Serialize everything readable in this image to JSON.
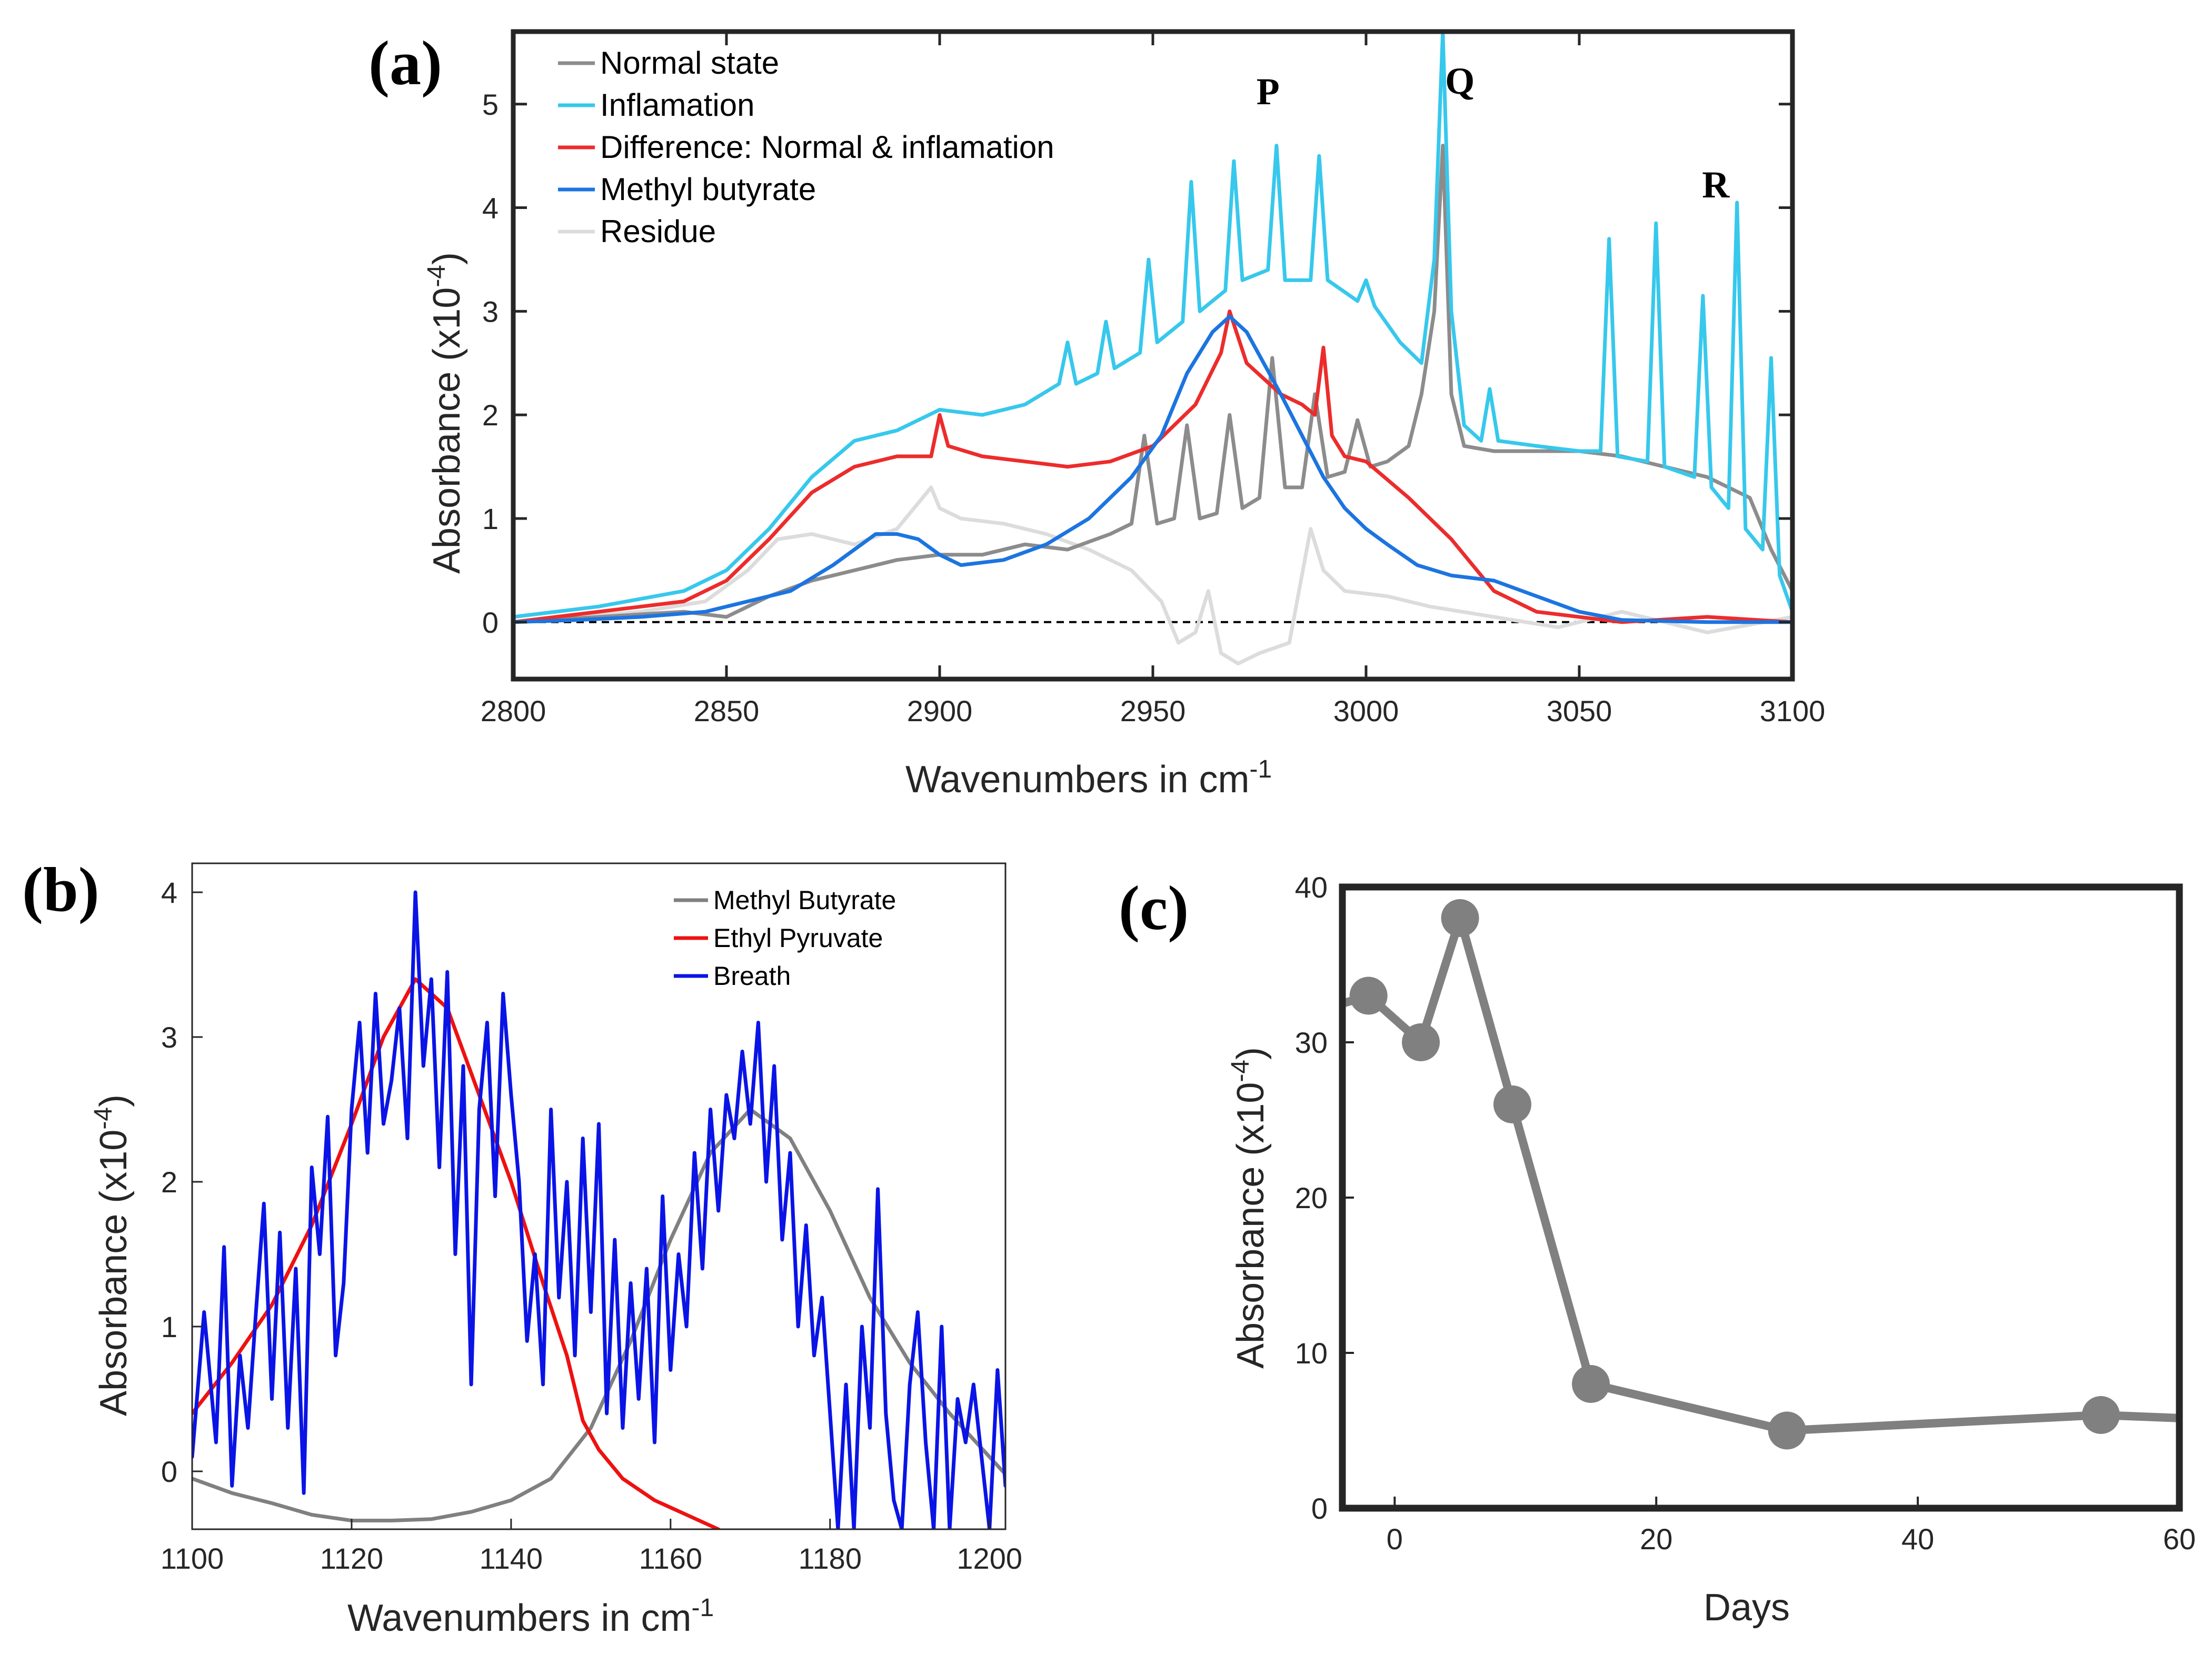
{
  "chart_data": [
    {
      "type": "line",
      "panel": "(a)",
      "xlabel": "Wavenumbers in cm",
      "xlabel_sup": "-1",
      "ylabel": "Absorbance (x10",
      "ylabel_sup": "-4",
      "ylabel_close": ")",
      "xlim": [
        2800,
        3100
      ],
      "ylim": [
        -0.55,
        5.7
      ],
      "xticks": [
        "2800",
        "2850",
        "2900",
        "2950",
        "3000",
        "3050",
        "3100"
      ],
      "yticks": [
        "0",
        "1",
        "2",
        "3",
        "4",
        "5"
      ],
      "zero_line": "dashed",
      "annotations": [
        {
          "text": "P",
          "x": 2977,
          "y": 5.0
        },
        {
          "text": "Q",
          "x": 3022,
          "y": 5.1
        },
        {
          "text": "R",
          "x": 3082,
          "y": 4.1
        }
      ],
      "legend": [
        {
          "name": "Normal state",
          "color": "#8c8c8c"
        },
        {
          "name": "Inflamation",
          "color": "#37c8ec"
        },
        {
          "name": "Difference: Normal & inflamation",
          "color": "#ec2c2c"
        },
        {
          "name": "Methyl butyrate",
          "color": "#1c74e0"
        },
        {
          "name": "Residue",
          "color": "#dcdcdc"
        }
      ],
      "series": [
        {
          "name": "Residue",
          "color": "#dcdcdc",
          "x": [
            2800,
            2815,
            2830,
            2845,
            2855,
            2862,
            2870,
            2880,
            2890,
            2898,
            2900,
            2905,
            2915,
            2925,
            2935,
            2945,
            2952,
            2956,
            2960,
            2963,
            2966,
            2970,
            2975,
            2982,
            2987,
            2990,
            2995,
            3005,
            3015,
            3030,
            3045,
            3060,
            3080,
            3100
          ],
          "y": [
            0,
            0.05,
            0.1,
            0.2,
            0.5,
            0.8,
            0.85,
            0.75,
            0.9,
            1.3,
            1.1,
            1.0,
            0.95,
            0.85,
            0.7,
            0.5,
            0.2,
            -0.2,
            -0.1,
            0.3,
            -0.3,
            -0.4,
            -0.3,
            -0.2,
            0.9,
            0.5,
            0.3,
            0.25,
            0.15,
            0.05,
            -0.05,
            0.1,
            -0.1,
            0.05
          ]
        },
        {
          "name": "Normal state",
          "color": "#8c8c8c",
          "x": [
            2800,
            2820,
            2840,
            2850,
            2860,
            2870,
            2880,
            2890,
            2900,
            2910,
            2920,
            2930,
            2940,
            2945,
            2948,
            2951,
            2955,
            2958,
            2961,
            2965,
            2968,
            2971,
            2975,
            2978,
            2981,
            2985,
            2988,
            2991,
            2995,
            2998,
            3001,
            3005,
            3010,
            3013,
            3016,
            3018,
            3020,
            3023,
            3030,
            3040,
            3050,
            3060,
            3070,
            3080,
            3090,
            3095,
            3100
          ],
          "y": [
            0,
            0.05,
            0.1,
            0.05,
            0.25,
            0.4,
            0.5,
            0.6,
            0.65,
            0.65,
            0.75,
            0.7,
            0.85,
            0.95,
            1.8,
            0.95,
            1.0,
            1.9,
            1.0,
            1.05,
            2.0,
            1.1,
            1.2,
            2.55,
            1.3,
            1.3,
            2.2,
            1.4,
            1.45,
            1.95,
            1.5,
            1.55,
            1.7,
            2.2,
            3.0,
            4.6,
            2.2,
            1.7,
            1.65,
            1.65,
            1.65,
            1.6,
            1.5,
            1.4,
            1.2,
            0.7,
            0.3
          ]
        },
        {
          "name": "Inflamation",
          "color": "#37c8ec",
          "x": [
            2800,
            2820,
            2840,
            2850,
            2860,
            2870,
            2880,
            2890,
            2900,
            2910,
            2920,
            2928,
            2930,
            2932,
            2937,
            2939,
            2941,
            2947,
            2949,
            2951,
            2957,
            2959,
            2961,
            2967,
            2969,
            2971,
            2977,
            2979,
            2981,
            2987,
            2989,
            2991,
            2998,
            3000,
            3002,
            3008,
            3013,
            3016,
            3018,
            3020,
            3023,
            3027,
            3029,
            3031,
            3040,
            3050,
            3055,
            3057,
            3059,
            3066,
            3068,
            3070,
            3077,
            3079,
            3081,
            3085,
            3087,
            3089,
            3093,
            3095,
            3097,
            3100
          ],
          "y": [
            0.05,
            0.15,
            0.3,
            0.5,
            0.9,
            1.4,
            1.75,
            1.85,
            2.05,
            2.0,
            2.1,
            2.3,
            2.7,
            2.3,
            2.4,
            2.9,
            2.45,
            2.6,
            3.5,
            2.7,
            2.9,
            4.25,
            3.0,
            3.2,
            4.45,
            3.3,
            3.4,
            4.6,
            3.3,
            3.3,
            4.5,
            3.3,
            3.1,
            3.3,
            3.05,
            2.7,
            2.5,
            3.5,
            5.7,
            3.0,
            1.9,
            1.75,
            2.25,
            1.75,
            1.7,
            1.65,
            1.65,
            3.7,
            1.6,
            1.55,
            3.85,
            1.5,
            1.4,
            3.15,
            1.3,
            1.1,
            4.05,
            0.9,
            0.7,
            2.55,
            0.45,
            0.1
          ]
        },
        {
          "name": "Difference: Normal & inflamation",
          "color": "#ec2c2c",
          "x": [
            2800,
            2820,
            2840,
            2850,
            2860,
            2870,
            2880,
            2890,
            2898,
            2900,
            2902,
            2910,
            2920,
            2930,
            2940,
            2950,
            2960,
            2966,
            2968,
            2972,
            2976,
            2980,
            2985,
            2988,
            2990,
            2992,
            2995,
            3000,
            3010,
            3020,
            3030,
            3040,
            3060,
            3080,
            3100
          ],
          "y": [
            0,
            0.1,
            0.2,
            0.4,
            0.8,
            1.25,
            1.5,
            1.6,
            1.6,
            2.0,
            1.7,
            1.6,
            1.55,
            1.5,
            1.55,
            1.7,
            2.1,
            2.6,
            3.0,
            2.5,
            2.35,
            2.2,
            2.1,
            2.0,
            2.65,
            1.8,
            1.6,
            1.55,
            1.2,
            0.8,
            0.3,
            0.1,
            0.0,
            0.05,
            0.0
          ]
        },
        {
          "name": "Methyl butyrate",
          "color": "#1c74e0",
          "x": [
            2800,
            2815,
            2830,
            2845,
            2855,
            2865,
            2875,
            2885,
            2890,
            2895,
            2900,
            2905,
            2915,
            2925,
            2935,
            2945,
            2952,
            2958,
            2964,
            2968,
            2972,
            2976,
            2980,
            2985,
            2990,
            2995,
            3000,
            3005,
            3012,
            3020,
            3030,
            3040,
            3050,
            3060,
            3080,
            3100
          ],
          "y": [
            0,
            0.02,
            0.05,
            0.1,
            0.2,
            0.3,
            0.55,
            0.85,
            0.85,
            0.8,
            0.65,
            0.55,
            0.6,
            0.75,
            1.0,
            1.4,
            1.8,
            2.4,
            2.8,
            2.95,
            2.8,
            2.5,
            2.2,
            1.8,
            1.4,
            1.1,
            0.9,
            0.75,
            0.55,
            0.45,
            0.4,
            0.25,
            0.1,
            0.02,
            0.0,
            0.0
          ]
        }
      ]
    },
    {
      "type": "line",
      "panel": "(b)",
      "xlabel": "Wavenumbers in cm",
      "xlabel_sup": "-1",
      "ylabel": "Absorbance (x10",
      "ylabel_sup": "-4",
      "ylabel_close": ")",
      "xlim": [
        1100,
        1202
      ],
      "ylim": [
        -0.4,
        4.2
      ],
      "xticks": [
        "1100",
        "1120",
        "1140",
        "1160",
        "1180",
        "1200"
      ],
      "yticks": [
        "0",
        "1",
        "2",
        "3",
        "4"
      ],
      "legend": [
        {
          "name": "Methyl Butyrate",
          "color": "#808080"
        },
        {
          "name": "Ethyl Pyruvate",
          "color": "#ee1111"
        },
        {
          "name": "Breath",
          "color": "#0a14e6"
        }
      ],
      "series": [
        {
          "name": "Methyl Butyrate",
          "color": "#808080",
          "x": [
            1100,
            1105,
            1110,
            1115,
            1120,
            1125,
            1130,
            1135,
            1140,
            1145,
            1150,
            1155,
            1160,
            1165,
            1170,
            1175,
            1180,
            1185,
            1190,
            1195,
            1200,
            1202
          ],
          "y": [
            -0.05,
            -0.15,
            -0.22,
            -0.3,
            -0.34,
            -0.34,
            -0.33,
            -0.28,
            -0.2,
            -0.05,
            0.3,
            0.9,
            1.6,
            2.2,
            2.5,
            2.3,
            1.8,
            1.2,
            0.75,
            0.4,
            0.1,
            -0.02
          ]
        },
        {
          "name": "Ethyl Pyruvate",
          "color": "#ee1111",
          "x": [
            1100,
            1105,
            1110,
            1115,
            1120,
            1124,
            1128,
            1132,
            1136,
            1140,
            1144,
            1147,
            1149,
            1151,
            1154,
            1158,
            1162,
            1166
          ],
          "y": [
            0.4,
            0.75,
            1.15,
            1.7,
            2.4,
            3.0,
            3.4,
            3.2,
            2.6,
            2.0,
            1.3,
            0.8,
            0.35,
            0.15,
            -0.05,
            -0.2,
            -0.3,
            -0.4
          ]
        },
        {
          "name": "Breath",
          "color": "#0a14e6",
          "x": [
            1100,
            1101.5,
            1103,
            1104,
            1105,
            1106,
            1107,
            1108,
            1109,
            1110,
            1111,
            1112,
            1113,
            1114,
            1115,
            1116,
            1117,
            1118,
            1119,
            1120,
            1121,
            1122,
            1123,
            1124,
            1125,
            1126,
            1127,
            1128,
            1129,
            1130,
            1131,
            1132,
            1133,
            1134,
            1135,
            1136,
            1137,
            1138,
            1139,
            1140,
            1141,
            1142,
            1143,
            1144,
            1145,
            1146,
            1147,
            1148,
            1149,
            1150,
            1151,
            1152,
            1153,
            1154,
            1155,
            1156,
            1157,
            1158,
            1159,
            1160,
            1161,
            1162,
            1163,
            1164,
            1165,
            1166,
            1167,
            1168,
            1169,
            1170,
            1171,
            1172,
            1173,
            1174,
            1175,
            1176,
            1177,
            1178,
            1179,
            1180,
            1181,
            1182,
            1183,
            1184,
            1185,
            1186,
            1187,
            1188,
            1189,
            1190,
            1191,
            1192,
            1193,
            1194,
            1195,
            1196,
            1197,
            1198,
            1199,
            1200,
            1201,
            1202
          ],
          "y": [
            0.1,
            1.1,
            0.2,
            1.55,
            -0.1,
            0.8,
            0.3,
            1.1,
            1.85,
            0.5,
            1.65,
            0.3,
            1.4,
            -0.15,
            2.1,
            1.5,
            2.45,
            0.8,
            1.3,
            2.5,
            3.1,
            2.2,
            3.3,
            2.4,
            2.7,
            3.2,
            2.3,
            4.0,
            2.8,
            3.4,
            2.1,
            3.45,
            1.5,
            2.8,
            0.6,
            2.5,
            3.1,
            1.9,
            3.3,
            2.6,
            2.0,
            0.9,
            1.5,
            0.6,
            2.5,
            1.2,
            2.0,
            0.8,
            2.3,
            1.1,
            2.4,
            0.4,
            1.6,
            0.3,
            1.3,
            0.5,
            1.4,
            0.2,
            1.9,
            0.7,
            1.5,
            1.0,
            2.2,
            1.4,
            2.5,
            1.8,
            2.6,
            2.3,
            2.9,
            2.4,
            3.1,
            2.0,
            2.8,
            1.6,
            2.2,
            1.0,
            1.7,
            0.8,
            1.2,
            0.4,
            -0.4,
            0.6,
            -0.4,
            1.0,
            0.3,
            1.95,
            0.4,
            -0.2,
            -0.4,
            0.6,
            1.1,
            0.2,
            -0.4,
            1.0,
            -0.4,
            0.5,
            0.2,
            0.6,
            0.1,
            -0.4,
            0.7,
            -0.1
          ]
        }
      ]
    },
    {
      "type": "line",
      "panel": "(c)",
      "xlabel": "Days",
      "ylabel": "Absorbance (x10",
      "ylabel_sup": "-4",
      "ylabel_close": ")",
      "xlim": [
        -4,
        60
      ],
      "ylim": [
        0,
        40
      ],
      "xticks": [
        "0",
        "20",
        "40",
        "60"
      ],
      "yticks": [
        "0",
        "10",
        "20",
        "30",
        "40"
      ],
      "series": [
        {
          "name": "Absorbance",
          "color": "#808080",
          "x": [
            -4,
            -2,
            2,
            5,
            9,
            15,
            30,
            54,
            60
          ],
          "y": [
            32.5,
            33,
            30,
            38,
            26,
            8,
            5,
            6,
            5.8
          ],
          "markers": [
            false,
            true,
            true,
            true,
            true,
            true,
            true,
            true,
            false
          ]
        }
      ]
    }
  ]
}
